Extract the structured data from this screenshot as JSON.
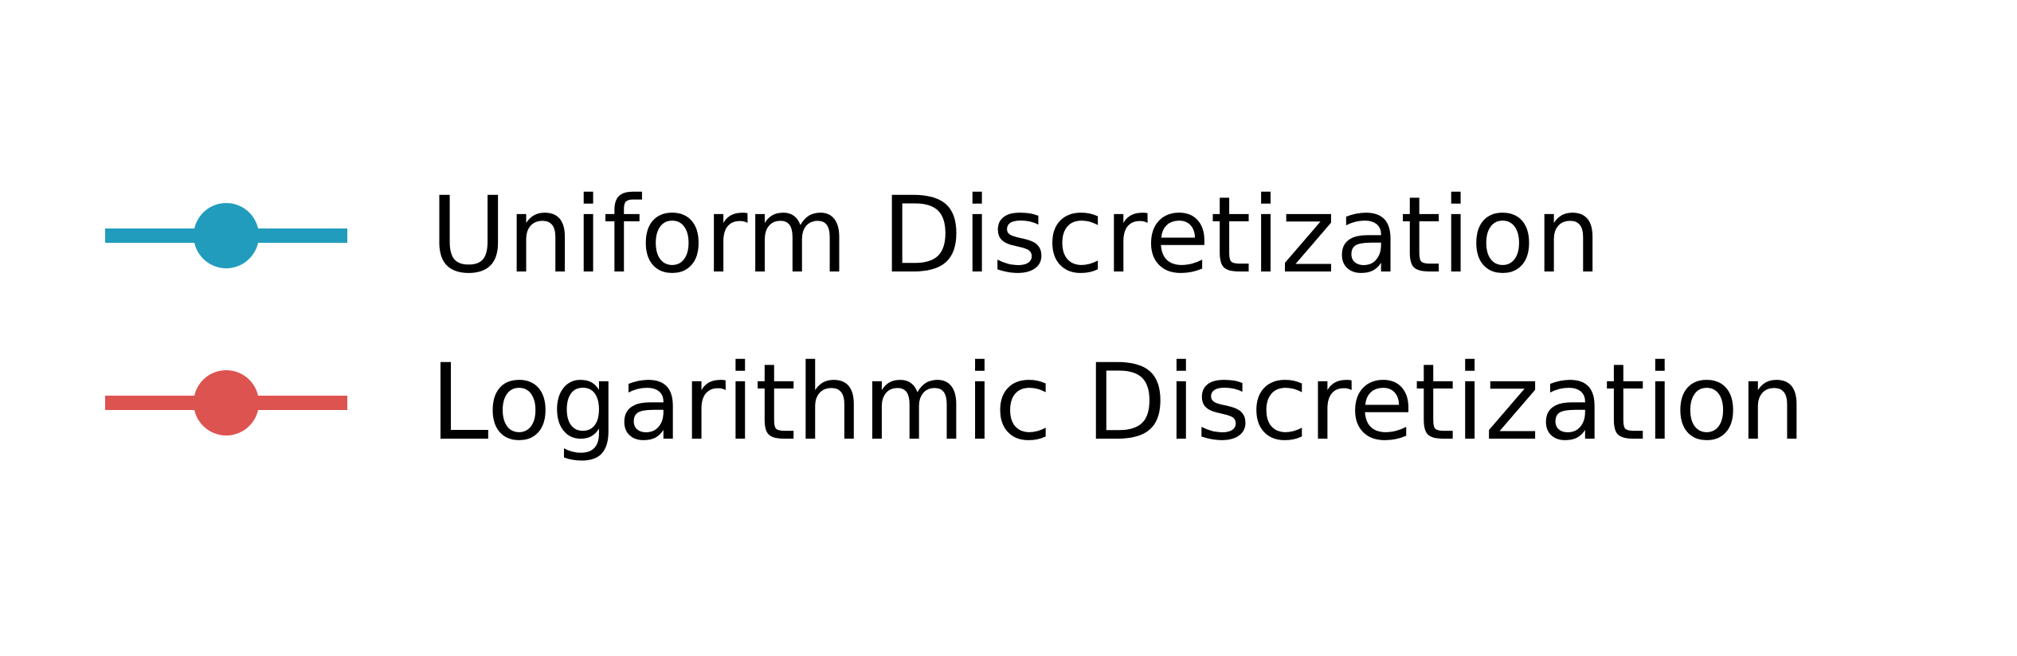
{
  "chart_data": {
    "type": "line",
    "legend": {
      "entries": [
        {
          "label": "Uniform Discretization",
          "color": "#229cbd"
        },
        {
          "label": "Logarithmic Discretization",
          "color": "#dc5350"
        }
      ],
      "placement": "center"
    }
  }
}
